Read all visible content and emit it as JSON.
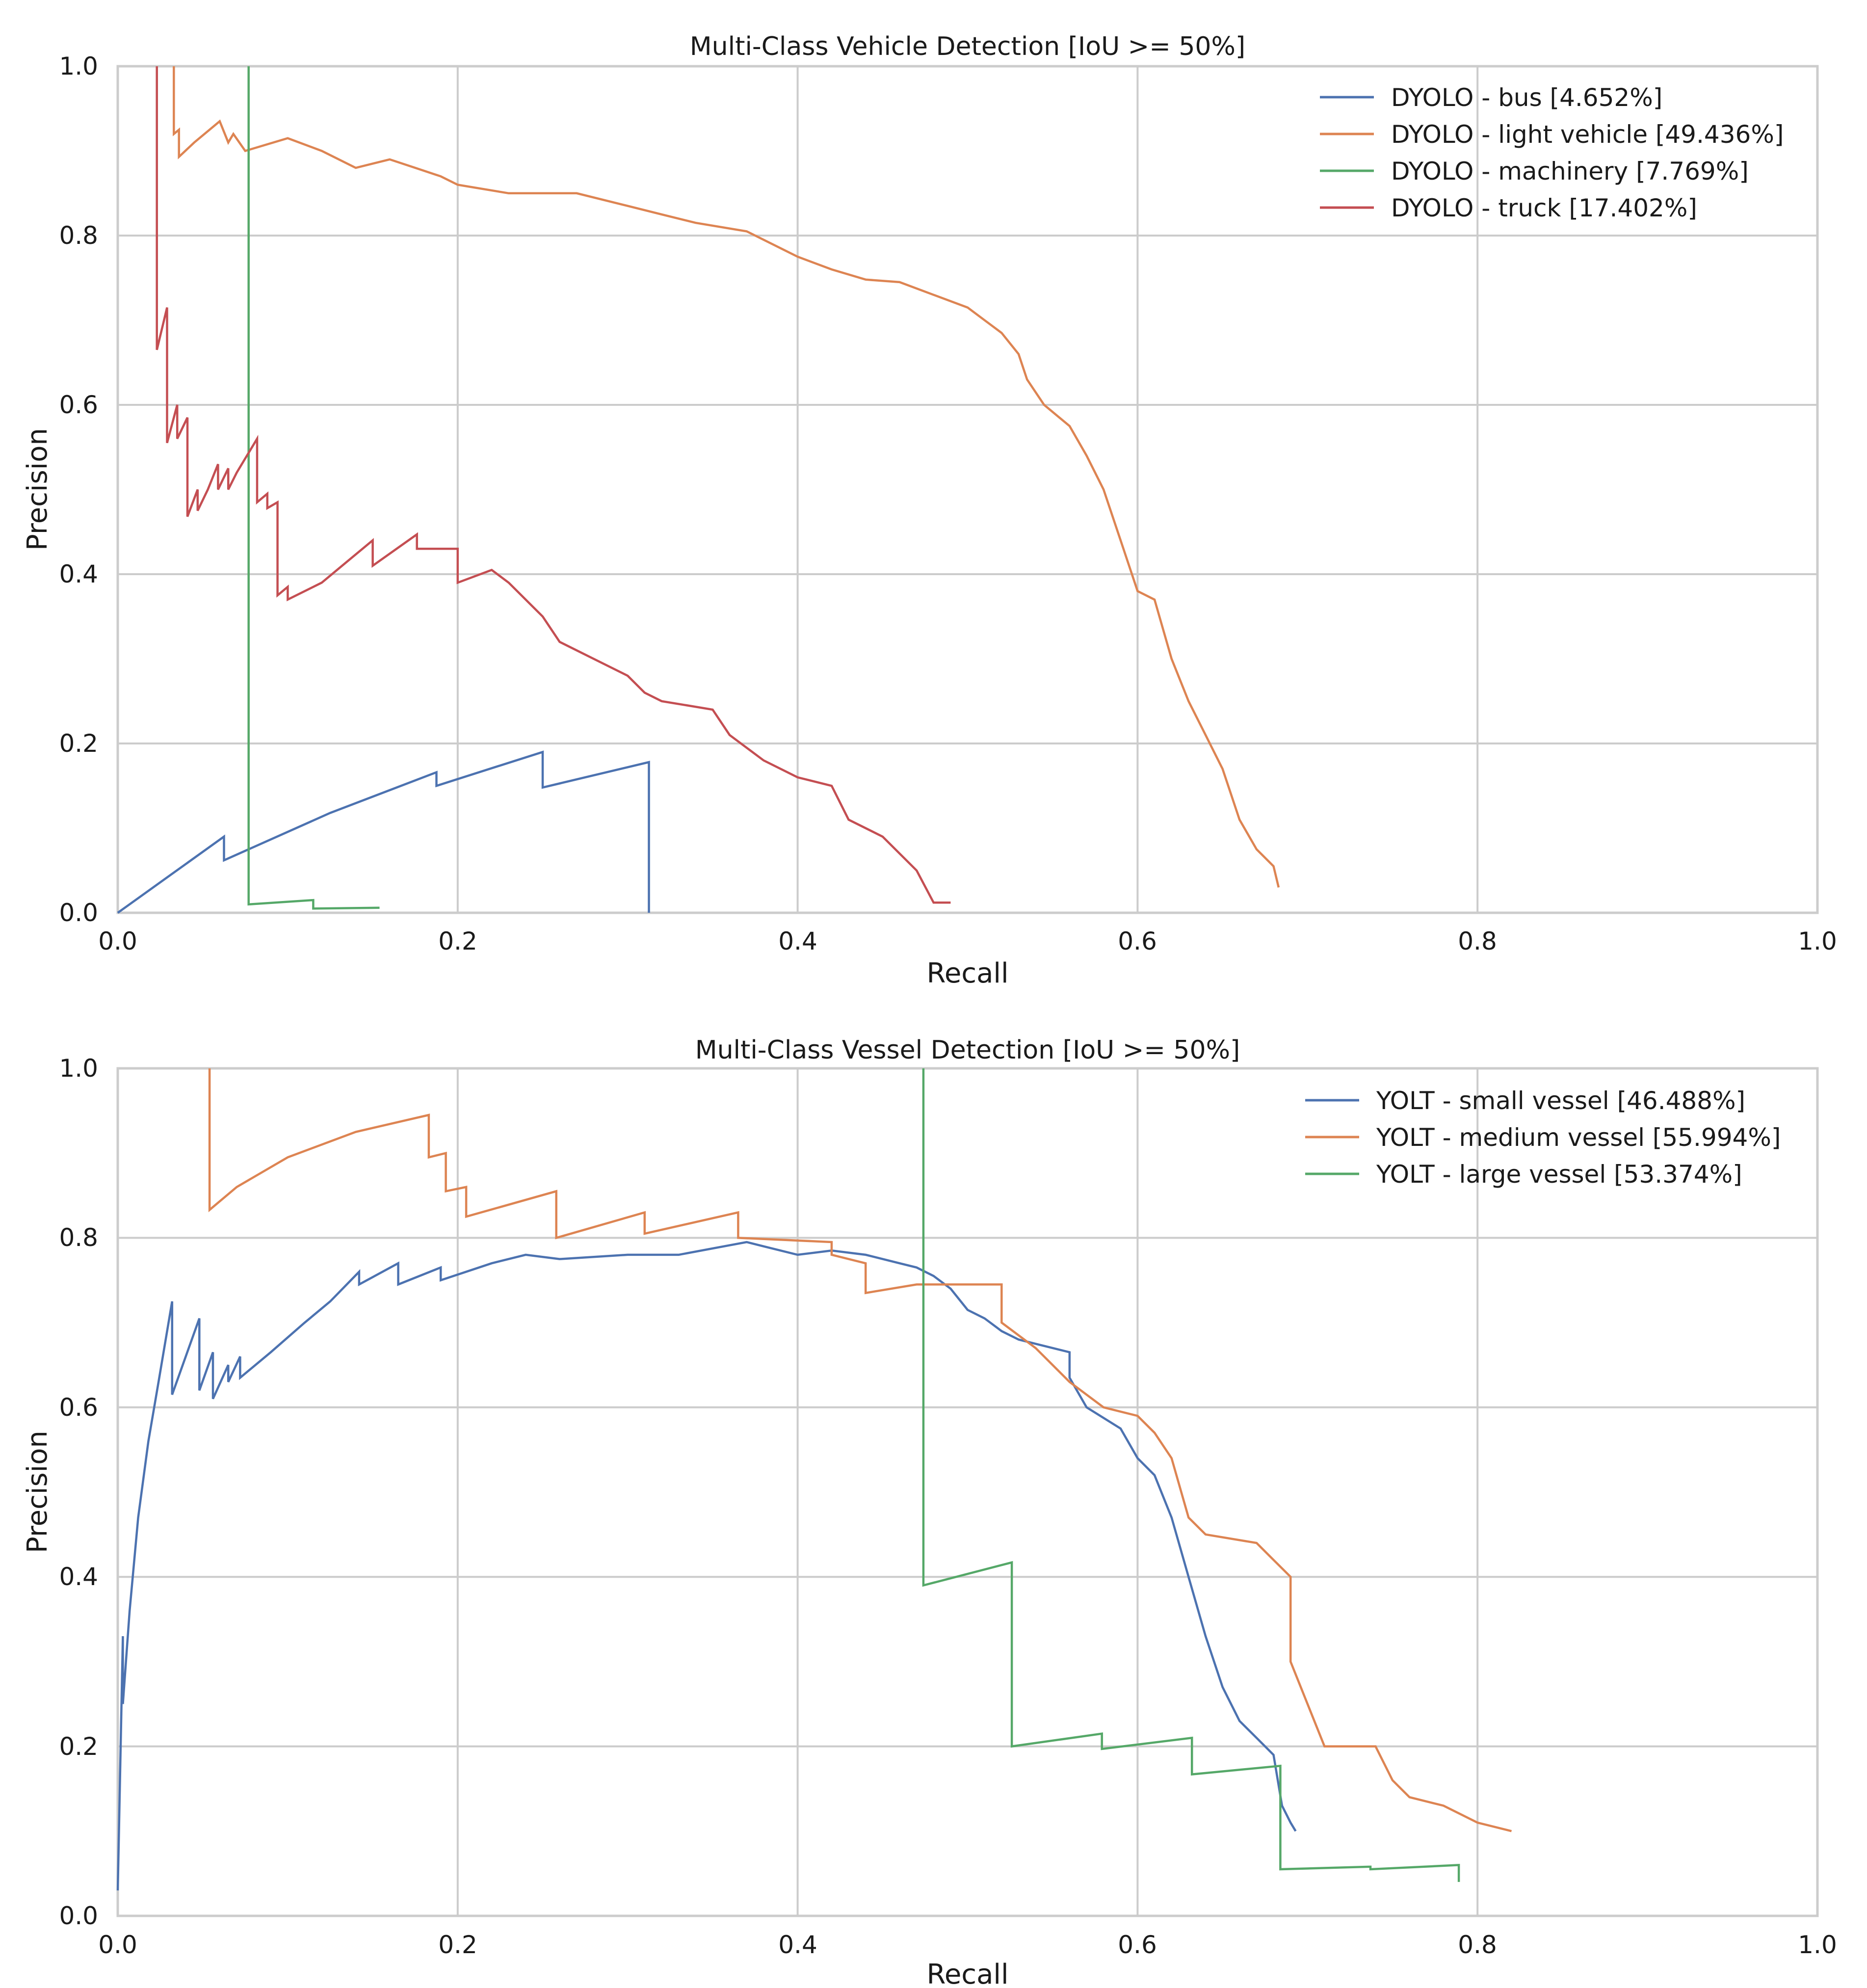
{
  "chart_data": [
    {
      "type": "line",
      "title": "Multi-Class Vehicle Detection [IoU >= 50%]",
      "xlabel": "Recall",
      "ylabel": "Precision",
      "xlim": [
        0.0,
        1.0
      ],
      "ylim": [
        0.0,
        1.0
      ],
      "xticks": [
        "0.0",
        "0.2",
        "0.4",
        "0.6",
        "0.8",
        "1.0"
      ],
      "yticks": [
        "0.0",
        "0.2",
        "0.4",
        "0.6",
        "0.8",
        "1.0"
      ],
      "grid": true,
      "legend_position": "top-right",
      "series": [
        {
          "name": "DYOLO - bus [4.652%]",
          "color": "#4c72b0",
          "points": [
            [
              0.0,
              0.0
            ],
            [
              0.0625,
              0.09
            ],
            [
              0.0625,
              0.062
            ],
            [
              0.125,
              0.118
            ],
            [
              0.1875,
              0.166
            ],
            [
              0.1875,
              0.15
            ],
            [
              0.25,
              0.19
            ],
            [
              0.25,
              0.148
            ],
            [
              0.3125,
              0.178
            ],
            [
              0.3125,
              0.0
            ]
          ]
        },
        {
          "name": "DYOLO - light vehicle [49.436%]",
          "color": "#dd8452",
          "points": [
            [
              0.033,
              1.0
            ],
            [
              0.033,
              0.92
            ],
            [
              0.036,
              0.925
            ],
            [
              0.036,
              0.893
            ],
            [
              0.045,
              0.91
            ],
            [
              0.06,
              0.935
            ],
            [
              0.065,
              0.91
            ],
            [
              0.068,
              0.92
            ],
            [
              0.075,
              0.9
            ],
            [
              0.1,
              0.915
            ],
            [
              0.12,
              0.9
            ],
            [
              0.14,
              0.88
            ],
            [
              0.16,
              0.89
            ],
            [
              0.175,
              0.88
            ],
            [
              0.19,
              0.87
            ],
            [
              0.2,
              0.86
            ],
            [
              0.23,
              0.85
            ],
            [
              0.27,
              0.85
            ],
            [
              0.3,
              0.835
            ],
            [
              0.32,
              0.825
            ],
            [
              0.34,
              0.815
            ],
            [
              0.37,
              0.805
            ],
            [
              0.39,
              0.785
            ],
            [
              0.4,
              0.775
            ],
            [
              0.42,
              0.76
            ],
            [
              0.44,
              0.748
            ],
            [
              0.46,
              0.745
            ],
            [
              0.48,
              0.73
            ],
            [
              0.5,
              0.715
            ],
            [
              0.51,
              0.7
            ],
            [
              0.52,
              0.685
            ],
            [
              0.53,
              0.66
            ],
            [
              0.535,
              0.63
            ],
            [
              0.545,
              0.6
            ],
            [
              0.56,
              0.575
            ],
            [
              0.57,
              0.54
            ],
            [
              0.58,
              0.5
            ],
            [
              0.59,
              0.44
            ],
            [
              0.6,
              0.38
            ],
            [
              0.61,
              0.37
            ],
            [
              0.62,
              0.3
            ],
            [
              0.63,
              0.25
            ],
            [
              0.64,
              0.21
            ],
            [
              0.65,
              0.17
            ],
            [
              0.66,
              0.11
            ],
            [
              0.67,
              0.075
            ],
            [
              0.68,
              0.055
            ],
            [
              0.683,
              0.03
            ]
          ]
        },
        {
          "name": "DYOLO - machinery [7.769%]",
          "color": "#55a868",
          "points": [
            [
              0.077,
              1.0
            ],
            [
              0.077,
              0.01
            ],
            [
              0.115,
              0.015
            ],
            [
              0.115,
              0.005
            ],
            [
              0.154,
              0.006
            ]
          ]
        },
        {
          "name": "DYOLO - truck [17.402%]",
          "color": "#c44e52",
          "points": [
            [
              0.023,
              1.0
            ],
            [
              0.023,
              0.665
            ],
            [
              0.029,
              0.715
            ],
            [
              0.029,
              0.555
            ],
            [
              0.035,
              0.6
            ],
            [
              0.035,
              0.56
            ],
            [
              0.041,
              0.585
            ],
            [
              0.041,
              0.468
            ],
            [
              0.047,
              0.5
            ],
            [
              0.047,
              0.475
            ],
            [
              0.053,
              0.5
            ],
            [
              0.059,
              0.53
            ],
            [
              0.059,
              0.5
            ],
            [
              0.065,
              0.525
            ],
            [
              0.065,
              0.5
            ],
            [
              0.07,
              0.52
            ],
            [
              0.082,
              0.56
            ],
            [
              0.082,
              0.485
            ],
            [
              0.088,
              0.495
            ],
            [
              0.088,
              0.478
            ],
            [
              0.094,
              0.485
            ],
            [
              0.094,
              0.375
            ],
            [
              0.1,
              0.385
            ],
            [
              0.1,
              0.37
            ],
            [
              0.12,
              0.39
            ],
            [
              0.15,
              0.44
            ],
            [
              0.15,
              0.41
            ],
            [
              0.176,
              0.447
            ],
            [
              0.176,
              0.43
            ],
            [
              0.2,
              0.43
            ],
            [
              0.2,
              0.39
            ],
            [
              0.22,
              0.405
            ],
            [
              0.23,
              0.39
            ],
            [
              0.25,
              0.35
            ],
            [
              0.26,
              0.32
            ],
            [
              0.28,
              0.3
            ],
            [
              0.3,
              0.28
            ],
            [
              0.31,
              0.26
            ],
            [
              0.32,
              0.25
            ],
            [
              0.35,
              0.24
            ],
            [
              0.36,
              0.21
            ],
            [
              0.38,
              0.18
            ],
            [
              0.4,
              0.16
            ],
            [
              0.42,
              0.15
            ],
            [
              0.43,
              0.11
            ],
            [
              0.45,
              0.09
            ],
            [
              0.47,
              0.05
            ],
            [
              0.48,
              0.012
            ],
            [
              0.49,
              0.012
            ]
          ]
        }
      ]
    },
    {
      "type": "line",
      "title": "Multi-Class Vessel Detection [IoU >= 50%]",
      "xlabel": "Recall",
      "ylabel": "Precision",
      "xlim": [
        0.0,
        1.0
      ],
      "ylim": [
        0.0,
        1.0
      ],
      "xticks": [
        "0.0",
        "0.2",
        "0.4",
        "0.6",
        "0.8",
        "1.0"
      ],
      "yticks": [
        "0.0",
        "0.2",
        "0.4",
        "0.6",
        "0.8",
        "1.0"
      ],
      "grid": true,
      "legend_position": "top-right",
      "series": [
        {
          "name": "YOLT - small vessel [46.488%]",
          "color": "#4c72b0",
          "points": [
            [
              0.0,
              0.03
            ],
            [
              0.003,
              0.33
            ],
            [
              0.003,
              0.25
            ],
            [
              0.007,
              0.36
            ],
            [
              0.012,
              0.47
            ],
            [
              0.018,
              0.56
            ],
            [
              0.024,
              0.63
            ],
            [
              0.032,
              0.725
            ],
            [
              0.032,
              0.615
            ],
            [
              0.048,
              0.705
            ],
            [
              0.048,
              0.62
            ],
            [
              0.056,
              0.665
            ],
            [
              0.056,
              0.61
            ],
            [
              0.065,
              0.65
            ],
            [
              0.065,
              0.63
            ],
            [
              0.072,
              0.66
            ],
            [
              0.072,
              0.635
            ],
            [
              0.09,
              0.665
            ],
            [
              0.11,
              0.7
            ],
            [
              0.125,
              0.725
            ],
            [
              0.142,
              0.76
            ],
            [
              0.142,
              0.745
            ],
            [
              0.165,
              0.77
            ],
            [
              0.165,
              0.745
            ],
            [
              0.19,
              0.765
            ],
            [
              0.19,
              0.75
            ],
            [
              0.22,
              0.77
            ],
            [
              0.24,
              0.78
            ],
            [
              0.26,
              0.775
            ],
            [
              0.3,
              0.78
            ],
            [
              0.33,
              0.78
            ],
            [
              0.37,
              0.795
            ],
            [
              0.38,
              0.79
            ],
            [
              0.4,
              0.78
            ],
            [
              0.42,
              0.785
            ],
            [
              0.44,
              0.78
            ],
            [
              0.46,
              0.77
            ],
            [
              0.47,
              0.765
            ],
            [
              0.48,
              0.755
            ],
            [
              0.49,
              0.74
            ],
            [
              0.5,
              0.715
            ],
            [
              0.51,
              0.705
            ],
            [
              0.52,
              0.69
            ],
            [
              0.53,
              0.68
            ],
            [
              0.54,
              0.675
            ],
            [
              0.56,
              0.665
            ],
            [
              0.56,
              0.635
            ],
            [
              0.57,
              0.6
            ],
            [
              0.59,
              0.575
            ],
            [
              0.6,
              0.54
            ],
            [
              0.61,
              0.52
            ],
            [
              0.62,
              0.47
            ],
            [
              0.63,
              0.4
            ],
            [
              0.64,
              0.33
            ],
            [
              0.65,
              0.27
            ],
            [
              0.66,
              0.23
            ],
            [
              0.67,
              0.21
            ],
            [
              0.68,
              0.19
            ],
            [
              0.685,
              0.13
            ],
            [
              0.69,
              0.11
            ],
            [
              0.693,
              0.1
            ]
          ]
        },
        {
          "name": "YOLT - medium vessel [55.994%]",
          "color": "#dd8452",
          "points": [
            [
              0.054,
              1.0
            ],
            [
              0.054,
              0.833
            ],
            [
              0.07,
              0.86
            ],
            [
              0.1,
              0.895
            ],
            [
              0.14,
              0.925
            ],
            [
              0.183,
              0.945
            ],
            [
              0.183,
              0.895
            ],
            [
              0.193,
              0.9
            ],
            [
              0.193,
              0.855
            ],
            [
              0.205,
              0.86
            ],
            [
              0.205,
              0.825
            ],
            [
              0.258,
              0.855
            ],
            [
              0.258,
              0.8
            ],
            [
              0.31,
              0.83
            ],
            [
              0.31,
              0.805
            ],
            [
              0.365,
              0.83
            ],
            [
              0.365,
              0.8
            ],
            [
              0.42,
              0.795
            ],
            [
              0.42,
              0.78
            ],
            [
              0.44,
              0.77
            ],
            [
              0.44,
              0.735
            ],
            [
              0.47,
              0.745
            ],
            [
              0.52,
              0.745
            ],
            [
              0.52,
              0.7
            ],
            [
              0.54,
              0.67
            ],
            [
              0.56,
              0.63
            ],
            [
              0.58,
              0.6
            ],
            [
              0.6,
              0.59
            ],
            [
              0.61,
              0.57
            ],
            [
              0.62,
              0.54
            ],
            [
              0.63,
              0.47
            ],
            [
              0.64,
              0.45
            ],
            [
              0.67,
              0.44
            ],
            [
              0.68,
              0.42
            ],
            [
              0.69,
              0.4
            ],
            [
              0.69,
              0.3
            ],
            [
              0.7,
              0.25
            ],
            [
              0.71,
              0.2
            ],
            [
              0.74,
              0.2
            ],
            [
              0.75,
              0.16
            ],
            [
              0.76,
              0.14
            ],
            [
              0.78,
              0.13
            ],
            [
              0.8,
              0.11
            ],
            [
              0.82,
              0.1
            ]
          ]
        },
        {
          "name": "YOLT - large vessel [53.374%]",
          "color": "#55a868",
          "points": [
            [
              0.474,
              1.0
            ],
            [
              0.474,
              0.39
            ],
            [
              0.526,
              0.417
            ],
            [
              0.526,
              0.2
            ],
            [
              0.579,
              0.215
            ],
            [
              0.579,
              0.197
            ],
            [
              0.632,
              0.21
            ],
            [
              0.632,
              0.167
            ],
            [
              0.684,
              0.177
            ],
            [
              0.684,
              0.055
            ],
            [
              0.737,
              0.058
            ],
            [
              0.737,
              0.055
            ],
            [
              0.789,
              0.06
            ],
            [
              0.789,
              0.04
            ]
          ]
        }
      ]
    }
  ]
}
